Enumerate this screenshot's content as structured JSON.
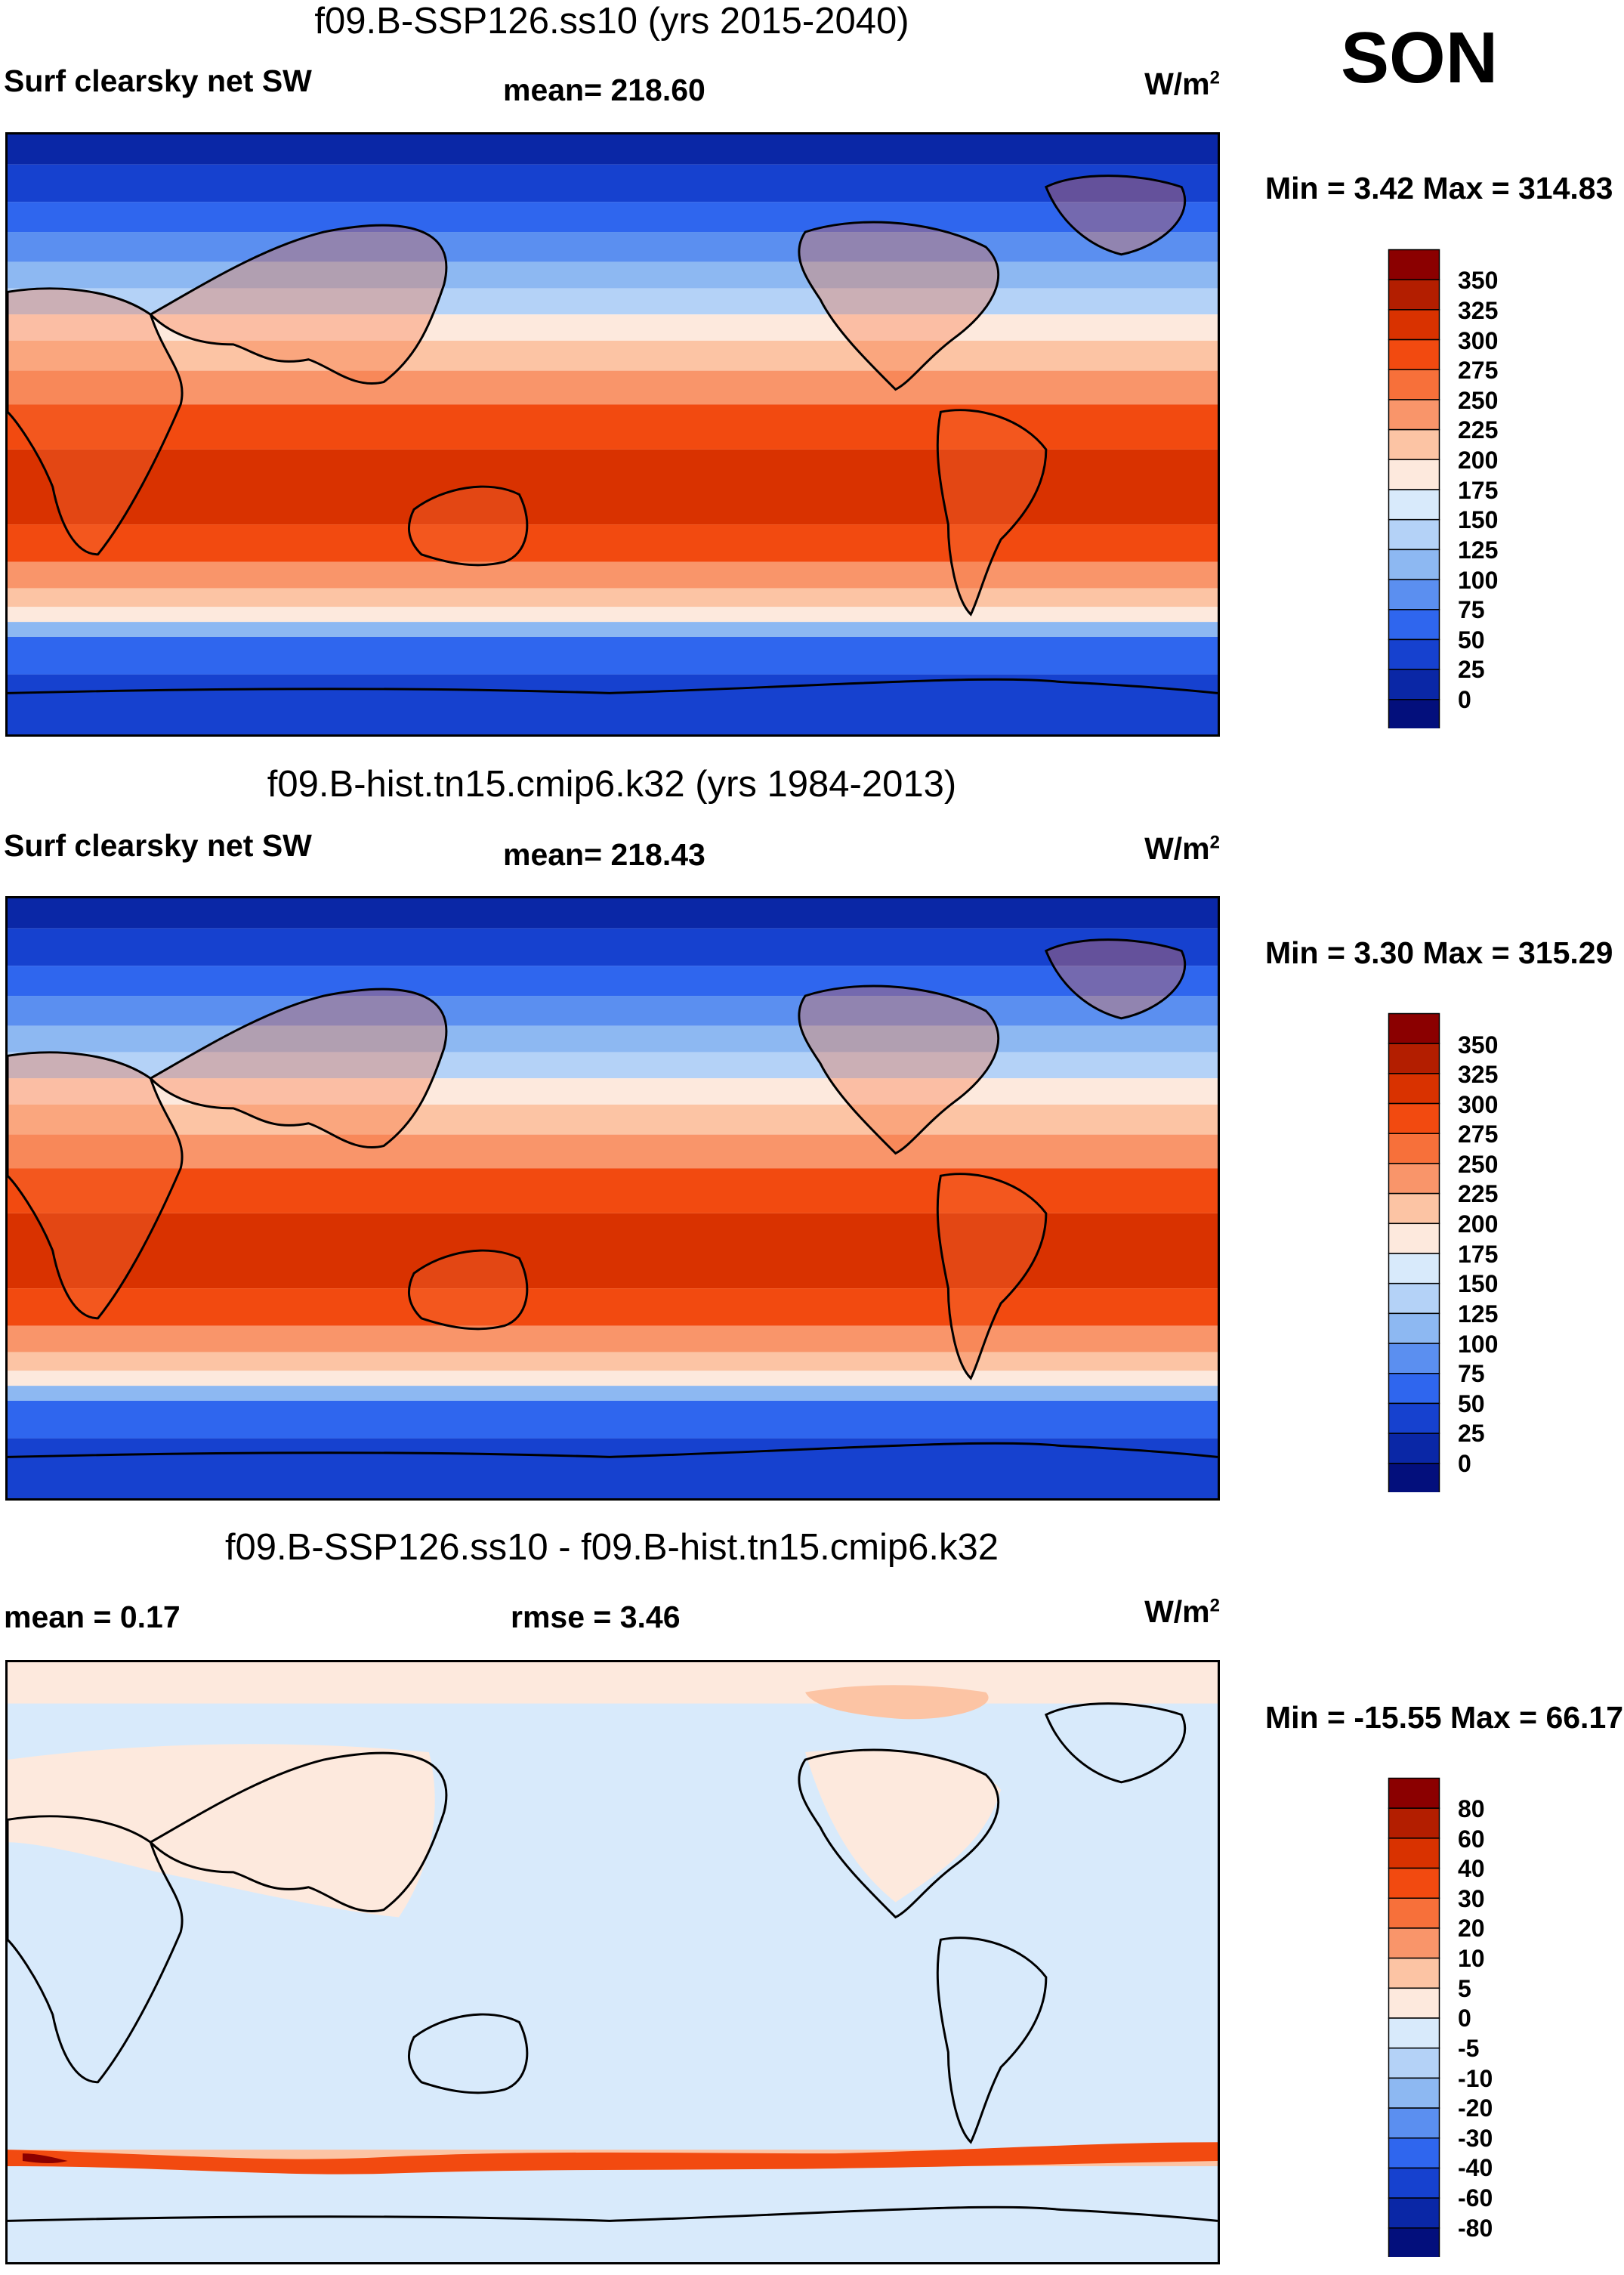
{
  "season": "SON",
  "panels": [
    {
      "title": "f09.B-SSP126.ss10 (yrs 2015-2040)",
      "left_label": "Surf clearsky net SW",
      "center_label": "mean= 218.60",
      "unit_base": "W/m",
      "unit_sup": "2",
      "minmax": "Min =   3.42 Max = 314.83",
      "colorbar_labels": [
        "350",
        "325",
        "300",
        "275",
        "250",
        "225",
        "200",
        "175",
        "150",
        "125",
        "100",
        "75",
        "50",
        "25",
        "0"
      ],
      "colorbar_colors": [
        "#8b0000",
        "#b31e00",
        "#d93200",
        "#f24a10",
        "#f7703a",
        "#f9956a",
        "#fcc4a4",
        "#fde9dd",
        "#d8eafb",
        "#b4d2f7",
        "#8db8f2",
        "#5b8ff0",
        "#2f66ee",
        "#1641cf",
        "#0a27a6",
        "#030f7c"
      ]
    },
    {
      "title": "f09.B-hist.tn15.cmip6.k32 (yrs 1984-2013)",
      "left_label": "Surf clearsky net SW",
      "center_label": "mean= 218.43",
      "unit_base": "W/m",
      "unit_sup": "2",
      "minmax": "Min =   3.30 Max = 315.29",
      "colorbar_labels": [
        "350",
        "325",
        "300",
        "275",
        "250",
        "225",
        "200",
        "175",
        "150",
        "125",
        "100",
        "75",
        "50",
        "25",
        "0"
      ],
      "colorbar_colors": [
        "#8b0000",
        "#b31e00",
        "#d93200",
        "#f24a10",
        "#f7703a",
        "#f9956a",
        "#fcc4a4",
        "#fde9dd",
        "#d8eafb",
        "#b4d2f7",
        "#8db8f2",
        "#5b8ff0",
        "#2f66ee",
        "#1641cf",
        "#0a27a6",
        "#030f7c"
      ]
    },
    {
      "title": "f09.B-SSP126.ss10 - f09.B-hist.tn15.cmip6.k32",
      "left_label": "mean =   0.17",
      "center_label": "rmse =   3.46",
      "unit_base": "W/m",
      "unit_sup": "2",
      "minmax": "Min = -15.55 Max =  66.17",
      "colorbar_labels": [
        "80",
        "60",
        "40",
        "30",
        "20",
        "10",
        "5",
        "0",
        "-5",
        "-10",
        "-20",
        "-30",
        "-40",
        "-60",
        "-80"
      ],
      "colorbar_colors": [
        "#8b0000",
        "#b31e00",
        "#d93200",
        "#f24a10",
        "#f7703a",
        "#f9956a",
        "#fcc4a4",
        "#fde9dd",
        "#d8eafb",
        "#b4d2f7",
        "#8db8f2",
        "#5b8ff0",
        "#2f66ee",
        "#1641cf",
        "#0a27a6",
        "#030f7c"
      ]
    }
  ]
}
